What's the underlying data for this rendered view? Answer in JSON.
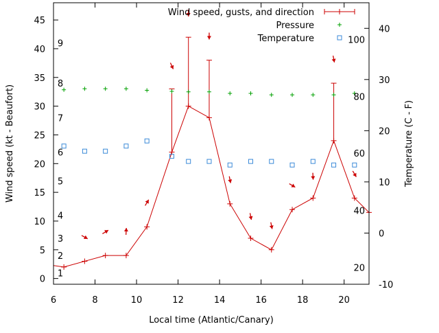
{
  "chart_data": {
    "type": "line",
    "xlabel": "Local time (Atlantic/Canary)",
    "ylabel_left": "Wind speed (kt - Beaufort)",
    "ylabel_right": "Temperature (C - F)",
    "xlim": [
      6,
      21.2
    ],
    "ylim_left": [
      -1,
      48
    ],
    "ylim_right": [
      -10,
      45
    ],
    "x_ticks": [
      6,
      8,
      10,
      12,
      14,
      16,
      18,
      20
    ],
    "y_ticks_left": [
      0,
      5,
      10,
      15,
      20,
      25,
      30,
      35,
      40,
      45
    ],
    "y_ticks_right": [
      -10,
      0,
      10,
      20,
      30,
      40
    ],
    "grid": false,
    "legend_position": "top-right",
    "beaufort_labels": [
      {
        "label": "1",
        "kt": 1
      },
      {
        "label": "2",
        "kt": 4
      },
      {
        "label": "3",
        "kt": 7
      },
      {
        "label": "4",
        "kt": 11
      },
      {
        "label": "5",
        "kt": 17
      },
      {
        "label": "6",
        "kt": 22
      },
      {
        "label": "7",
        "kt": 28
      },
      {
        "label": "8",
        "kt": 34
      },
      {
        "label": "9",
        "kt": 41
      }
    ],
    "fahrenheit_labels": [
      {
        "label": "20",
        "c": -6.7
      },
      {
        "label": "40",
        "c": 4.4
      },
      {
        "label": "60",
        "c": 15.6
      },
      {
        "label": "80",
        "c": 26.7
      },
      {
        "label": "100",
        "c": 37.8
      }
    ],
    "series": [
      {
        "name": "Wind speed, gusts, and direction",
        "axis": "left",
        "color": "#cc0000",
        "x": [
          5.5,
          6.5,
          7.5,
          8.5,
          9.5,
          10.5,
          11.7,
          12.5,
          13.5,
          14.5,
          15.5,
          16.5,
          17.5,
          18.5,
          19.5,
          20.5,
          21.2
        ],
        "y": [
          2.5,
          2,
          3,
          4,
          4,
          9,
          22,
          30,
          28,
          13,
          7,
          5,
          12,
          14,
          24,
          14,
          11.5
        ],
        "gusts": [
          {
            "x": 11.7,
            "gust": 33
          },
          {
            "x": 12.5,
            "gust": 42
          },
          {
            "x": 13.5,
            "gust": 38
          },
          {
            "x": 19.5,
            "gust": 34
          }
        ]
      },
      {
        "name": "Pressure",
        "axis": "right",
        "color": "#00a000",
        "x": [
          6.5,
          7.5,
          8.5,
          9.5,
          10.5,
          11.7,
          12.5,
          13.5,
          14.5,
          15.5,
          16.5,
          17.5,
          18.5,
          19.5,
          20.5
        ],
        "y": [
          28,
          28.2,
          28.2,
          28.2,
          27.9,
          27.7,
          27.6,
          27.6,
          27.3,
          27.3,
          27,
          27,
          27,
          27,
          27.3
        ]
      },
      {
        "name": "Temperature",
        "axis": "right",
        "color": "#3a8ad8",
        "x": [
          6.5,
          7.5,
          8.5,
          9.5,
          10.5,
          11.7,
          12.5,
          13.5,
          14.5,
          15.5,
          16.5,
          17.5,
          18.5,
          19.5,
          20.5
        ],
        "y": [
          17,
          16,
          16,
          17,
          18,
          15,
          14,
          14,
          13.3,
          14,
          14,
          13.3,
          14,
          13.3,
          13.3
        ]
      }
    ],
    "wind_arrows": [
      {
        "x": 7.5,
        "kt": 7.2,
        "dx": 1,
        "dy": 0.55
      },
      {
        "x": 8.5,
        "kt": 8.1,
        "dx": 1,
        "dy": -0.6
      },
      {
        "x": 9.5,
        "kt": 8.2,
        "dx": 0.05,
        "dy": -1
      },
      {
        "x": 10.5,
        "kt": 13.2,
        "dx": 0.6,
        "dy": -1
      },
      {
        "x": 11.7,
        "kt": 37,
        "dx": 0.45,
        "dy": 1
      },
      {
        "x": 12.5,
        "kt": 46.2,
        "dx": 0,
        "dy": 1
      },
      {
        "x": 13.5,
        "kt": 42.2,
        "dx": 0,
        "dy": 1
      },
      {
        "x": 14.5,
        "kt": 17.2,
        "dx": 0.2,
        "dy": 1
      },
      {
        "x": 15.5,
        "kt": 10.8,
        "dx": 0.2,
        "dy": 1
      },
      {
        "x": 16.5,
        "kt": 9.2,
        "dx": 0.2,
        "dy": 1
      },
      {
        "x": 17.5,
        "kt": 16.2,
        "dx": 1,
        "dy": 0.6
      },
      {
        "x": 18.5,
        "kt": 17.8,
        "dx": 0.05,
        "dy": 1
      },
      {
        "x": 19.5,
        "kt": 38.2,
        "dx": 0.2,
        "dy": 1
      },
      {
        "x": 20.5,
        "kt": 18.2,
        "dx": 0.6,
        "dy": 1
      }
    ]
  }
}
